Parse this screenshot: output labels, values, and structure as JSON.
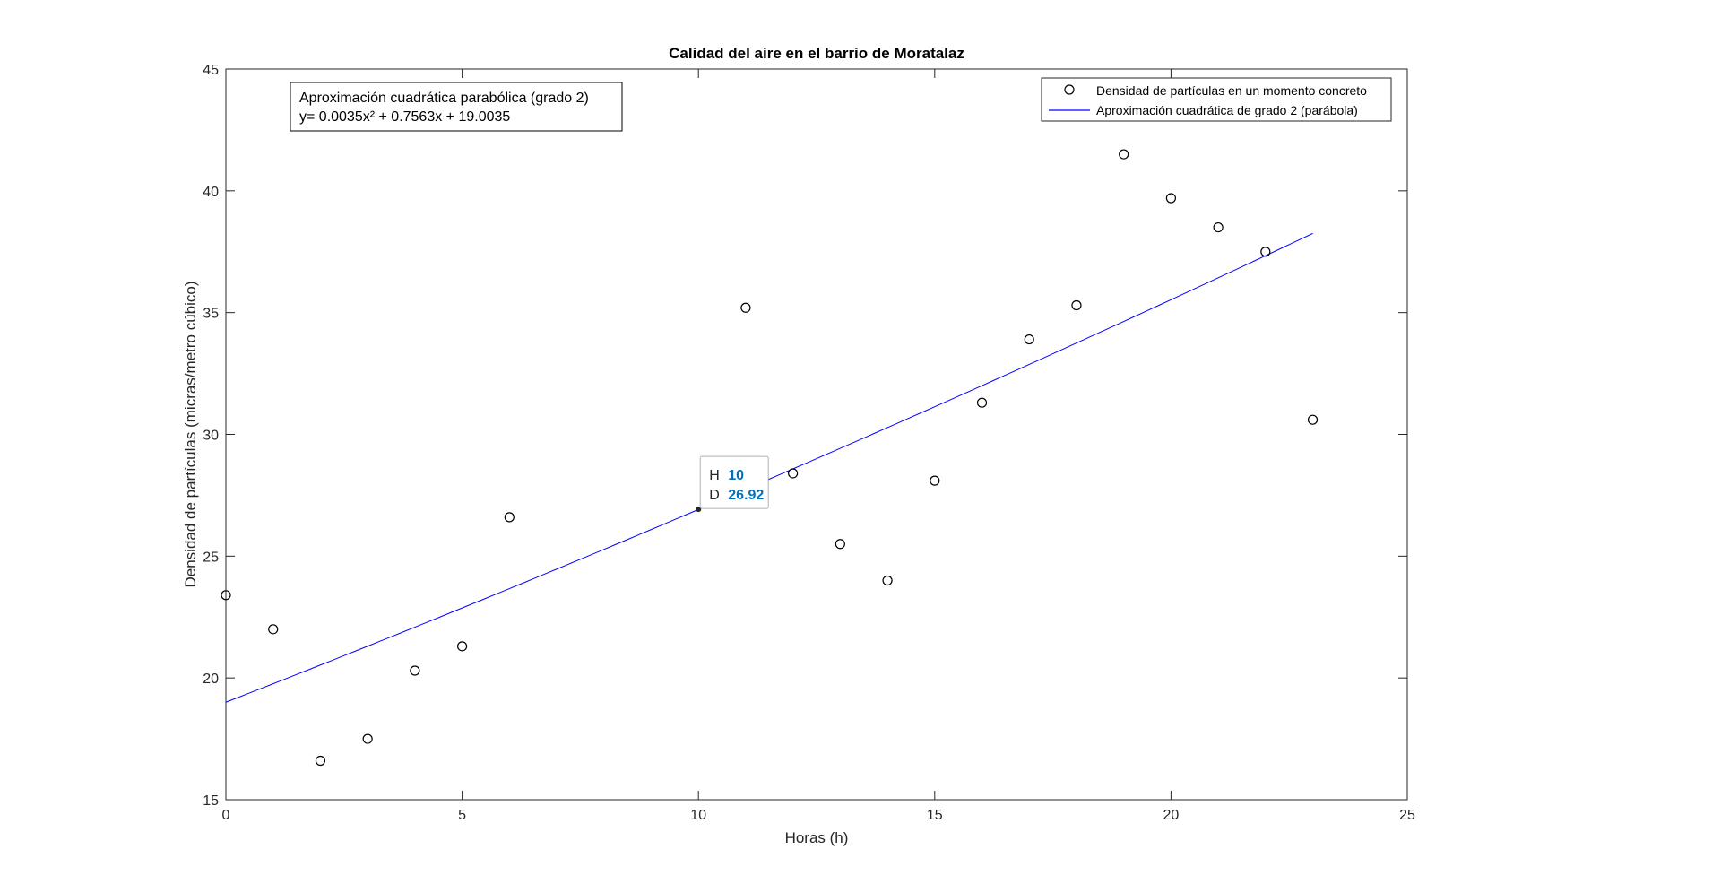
{
  "chart_data": {
    "type": "scatter",
    "title": "Calidad del aire en el barrio de Moratalaz",
    "xlabel": "Horas (h)",
    "ylabel": "Densidad de partículas (micras/metro cúbico)",
    "xlim": [
      0,
      25
    ],
    "ylim": [
      15,
      45
    ],
    "xticks": [
      0,
      5,
      10,
      15,
      20,
      25
    ],
    "yticks": [
      15,
      20,
      25,
      30,
      35,
      40,
      45
    ],
    "grid": false,
    "legend_position": "top-right",
    "series": [
      {
        "name": "Densidad de partículas en un momento concreto",
        "kind": "markers",
        "marker": "circle-open",
        "color": "#000000",
        "x": [
          0,
          1,
          2,
          3,
          4,
          5,
          6,
          11,
          12,
          13,
          14,
          15,
          16,
          17,
          18,
          19,
          20,
          21,
          22,
          23
        ],
        "y": [
          23.4,
          22.0,
          16.6,
          17.5,
          20.3,
          21.3,
          26.6,
          35.2,
          28.4,
          25.5,
          24.0,
          28.1,
          31.3,
          33.9,
          35.3,
          41.5,
          39.7,
          38.5,
          37.5,
          30.6
        ]
      },
      {
        "name": "Aproximación cuadrática de grado 2 (parábola)",
        "kind": "line",
        "color": "#0000ff",
        "fit": {
          "a": 0.0035,
          "b": 0.7563,
          "c": 19.0035
        },
        "x_range": [
          0,
          23
        ]
      }
    ],
    "annotation": {
      "line1": "Aproximación cuadrática parabólica (grado 2)",
      "line2": "y= 0.0035x² + 0.7563x + 19.0035"
    },
    "datatip": {
      "x": 10,
      "y": 26.92,
      "x_label": "H",
      "y_label": "D",
      "x_text": "10",
      "y_text": "26.92",
      "value_color": "#0072bd"
    }
  }
}
